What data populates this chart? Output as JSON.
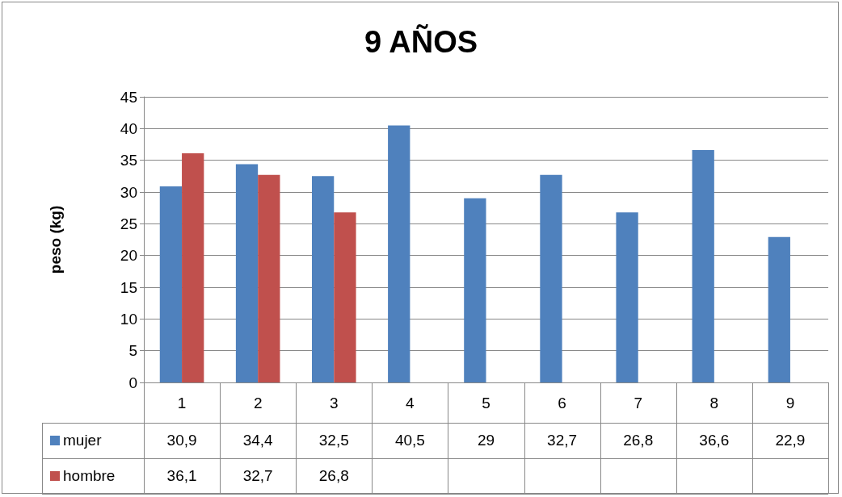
{
  "chart_data": {
    "type": "bar",
    "title": "9 AÑOS",
    "ylabel": "peso (kg)",
    "categories": [
      "1",
      "2",
      "3",
      "4",
      "5",
      "6",
      "7",
      "8",
      "9"
    ],
    "series": [
      {
        "name": "mujer",
        "color": "#4f81bd",
        "values": [
          30.9,
          34.4,
          32.5,
          40.5,
          29,
          32.7,
          26.8,
          36.6,
          22.9
        ],
        "value_labels": [
          "30,9",
          "34,4",
          "32,5",
          "40,5",
          "29",
          "32,7",
          "26,8",
          "36,6",
          "22,9"
        ]
      },
      {
        "name": "hombre",
        "color": "#c0504d",
        "values": [
          36.1,
          32.7,
          26.8,
          null,
          null,
          null,
          null,
          null,
          null
        ],
        "value_labels": [
          "36,1",
          "32,7",
          "26,8",
          null,
          null,
          null,
          null,
          null,
          null
        ]
      }
    ],
    "ylim": [
      0,
      45
    ],
    "yticks": [
      0,
      5,
      10,
      15,
      20,
      25,
      30,
      35,
      40,
      45
    ],
    "grid": "y",
    "legend": "bottom"
  }
}
